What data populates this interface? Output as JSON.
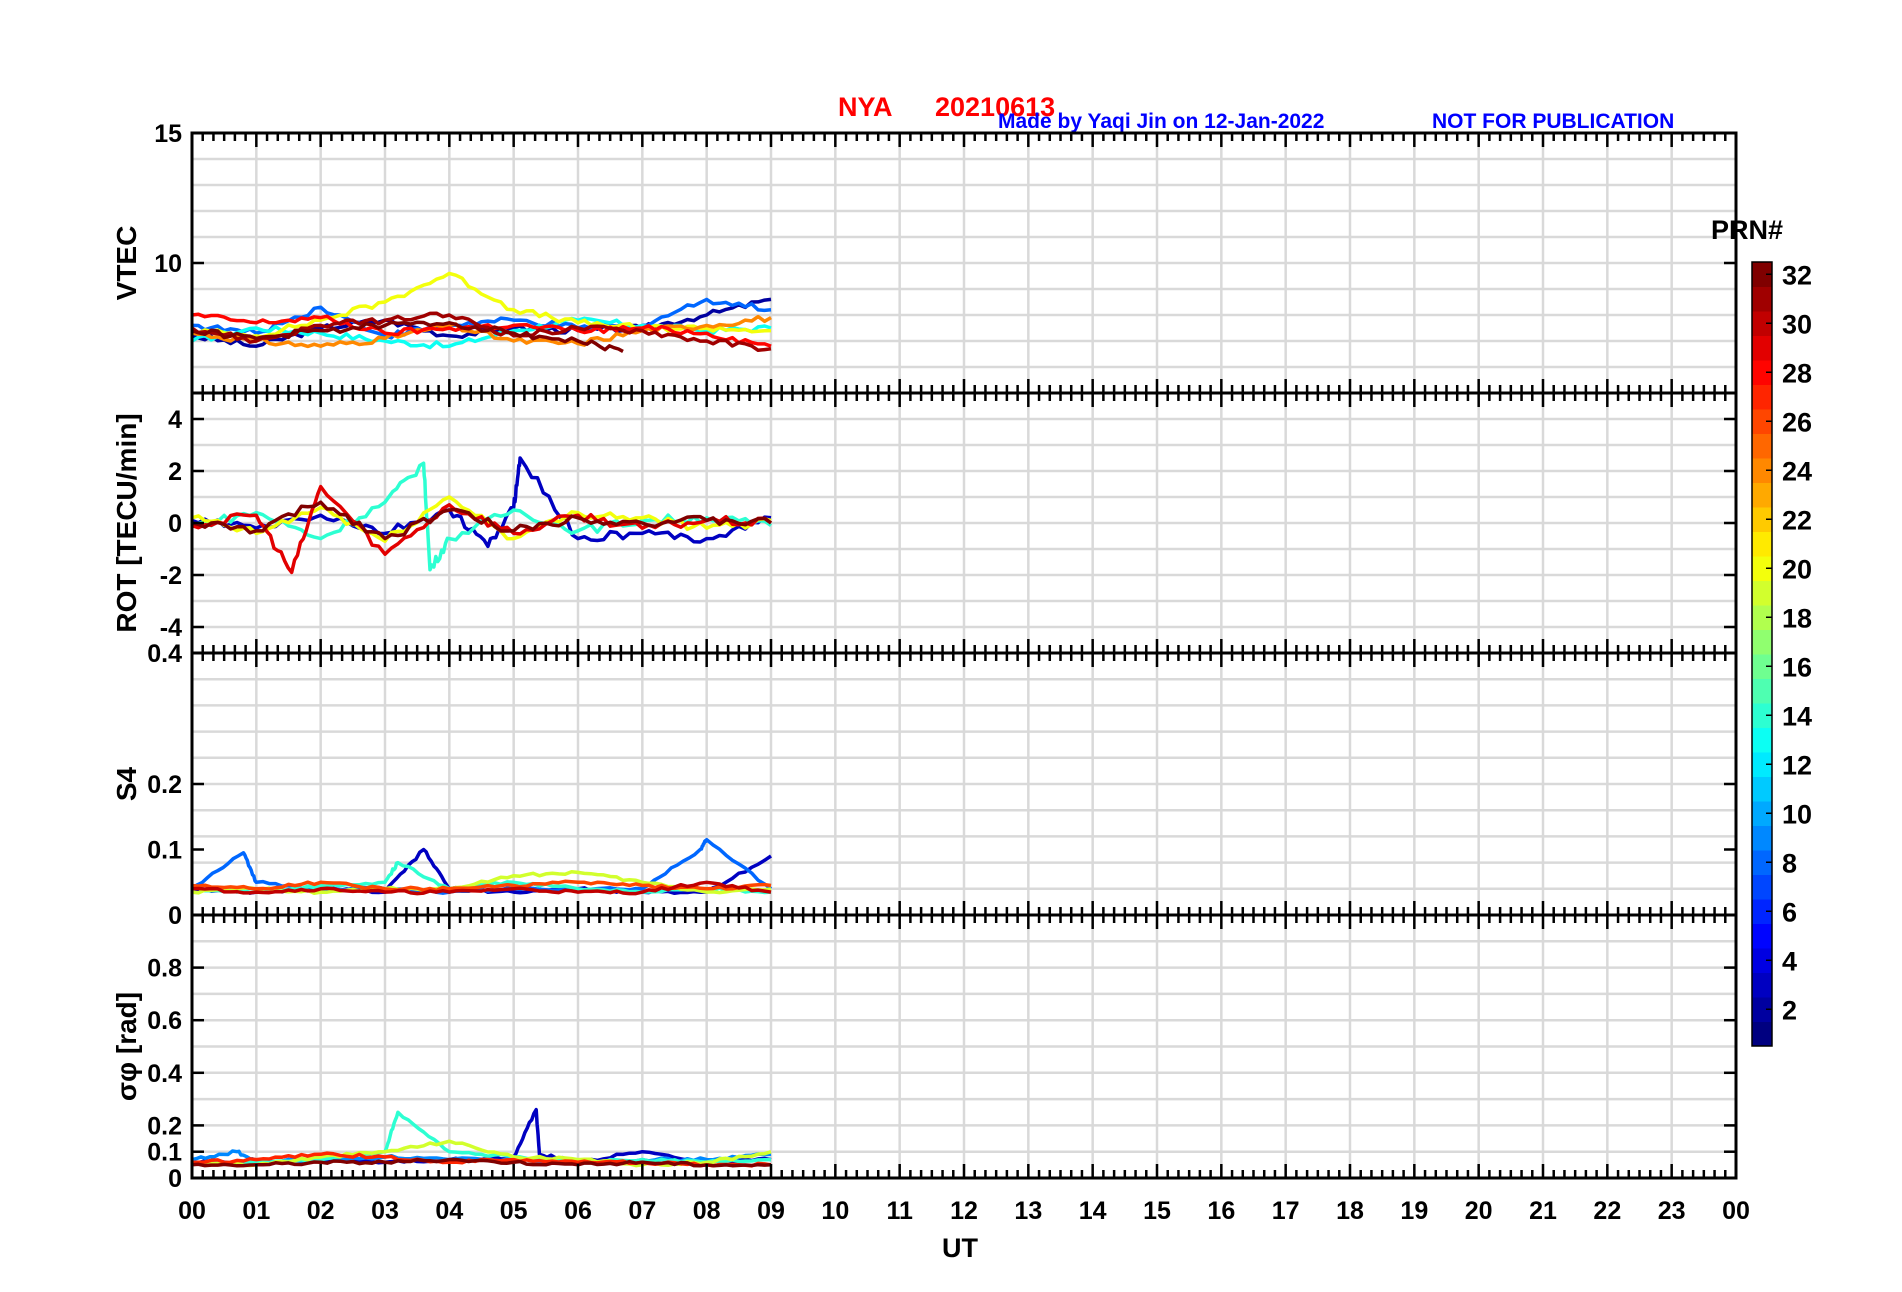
{
  "header": {
    "station": "NYA",
    "date": "20210613",
    "credit": "Made by Yaqi Jin on 12-Jan-2022",
    "notice": "NOT FOR PUBLICATION"
  },
  "colors": {
    "title_red": "#ff0000",
    "credit_blue": "#0000ff",
    "axis": "#000000",
    "grid": "#d9d9d9"
  },
  "colorbar": {
    "label": "PRN#",
    "ticks": [
      "2",
      "4",
      "6",
      "8",
      "10",
      "12",
      "14",
      "16",
      "18",
      "20",
      "22",
      "24",
      "26",
      "28",
      "30",
      "32"
    ],
    "range": [
      1,
      32
    ],
    "colormap": "jet"
  },
  "x_axis": {
    "label": "UT",
    "ticks": [
      "00",
      "01",
      "02",
      "03",
      "04",
      "05",
      "06",
      "07",
      "08",
      "09",
      "10",
      "11",
      "12",
      "13",
      "14",
      "15",
      "16",
      "17",
      "18",
      "19",
      "20",
      "21",
      "22",
      "23",
      "00"
    ],
    "range_hours": [
      0,
      24
    ]
  },
  "chart_data": [
    {
      "type": "line",
      "panel": "vtec",
      "ylabel": "VTEC",
      "ylim": [
        5,
        15
      ],
      "yticks": [
        "10",
        "15"
      ],
      "grid": true,
      "data_extent_hours": [
        0,
        9.05
      ],
      "series": [
        {
          "prn": 2,
          "x": [
            0,
            1,
            2,
            3,
            4,
            5,
            6,
            7,
            8,
            9
          ],
          "y": [
            7.2,
            6.8,
            7.5,
            7.8,
            7.2,
            7.5,
            7.4,
            7.5,
            8.0,
            8.6
          ]
        },
        {
          "prn": 8,
          "x": [
            0,
            1,
            2,
            3,
            4,
            5,
            6,
            7,
            8,
            9
          ],
          "y": [
            7.6,
            7.3,
            8.3,
            7.2,
            7.6,
            7.8,
            7.5,
            7.6,
            8.6,
            8.2
          ]
        },
        {
          "prn": 13,
          "x": [
            0,
            1,
            2,
            3,
            4,
            5,
            6,
            7,
            8,
            9
          ],
          "y": [
            7.0,
            7.5,
            7.3,
            7.0,
            6.8,
            7.4,
            7.8,
            7.6,
            7.4,
            7.5
          ]
        },
        {
          "prn": 20,
          "x": [
            0,
            1,
            2,
            3,
            4,
            5,
            6,
            7,
            8,
            9
          ],
          "y": [
            7.4,
            7.2,
            7.8,
            8.5,
            9.6,
            8.2,
            7.7,
            7.5,
            7.5,
            7.4
          ]
        },
        {
          "prn": 24,
          "x": [
            0,
            1,
            2,
            3,
            4,
            5,
            6,
            7,
            8,
            9
          ],
          "y": [
            7.3,
            7.0,
            6.8,
            7.1,
            7.6,
            7.0,
            6.9,
            7.4,
            7.6,
            7.9
          ]
        },
        {
          "prn": 28,
          "x": [
            0,
            1,
            2,
            3,
            4,
            5,
            6,
            7,
            8,
            9
          ],
          "y": [
            8.0,
            7.7,
            7.9,
            7.3,
            7.5,
            7.6,
            7.4,
            7.5,
            7.3,
            6.8
          ]
        },
        {
          "prn": 31,
          "x": [
            0,
            1,
            2,
            3,
            4,
            5,
            6,
            7,
            8,
            9
          ],
          "y": [
            7.5,
            7.0,
            7.6,
            7.8,
            8.0,
            7.2,
            7.5,
            7.4,
            7.0,
            6.7
          ]
        },
        {
          "prn": 32,
          "x": [
            0,
            1,
            2,
            3,
            4,
            5,
            6,
            6.7
          ],
          "y": [
            7.4,
            7.1,
            7.4,
            7.6,
            7.7,
            7.3,
            7.0,
            6.6
          ]
        }
      ]
    },
    {
      "type": "line",
      "panel": "rot",
      "ylabel": "ROT [TECU/min]",
      "ylim": [
        -5,
        5
      ],
      "yticks": [
        "-4",
        "-2",
        "0",
        "2",
        "4"
      ],
      "grid": true,
      "data_extent_hours": [
        0,
        9.05
      ],
      "series": [
        {
          "prn": 3,
          "x": [
            0,
            1,
            2,
            3,
            4,
            4.6,
            5,
            5.1,
            6,
            7,
            8,
            9
          ],
          "y": [
            0.1,
            -0.2,
            0.3,
            -0.4,
            0.5,
            -0.9,
            0.6,
            2.5,
            -0.6,
            -0.4,
            -0.6,
            0.2
          ]
        },
        {
          "prn": 14,
          "x": [
            0,
            1,
            2,
            3,
            3.6,
            3.7,
            4,
            5,
            6,
            7,
            8,
            9
          ],
          "y": [
            -0.1,
            0.4,
            -0.6,
            0.8,
            2.3,
            -1.8,
            -0.6,
            0.5,
            -0.3,
            0.1,
            0.2,
            -0.1
          ]
        },
        {
          "prn": 20,
          "x": [
            0,
            1,
            2,
            3,
            4,
            5,
            6,
            7,
            8,
            9
          ],
          "y": [
            0.2,
            -0.4,
            0.6,
            -0.7,
            1.0,
            -0.6,
            0.4,
            0.2,
            -0.2,
            0.1
          ]
        },
        {
          "prn": 29,
          "x": [
            0,
            1,
            1.55,
            2,
            3,
            4,
            5,
            6,
            7,
            8,
            9
          ],
          "y": [
            -0.1,
            0.3,
            -1.9,
            1.4,
            -1.2,
            0.7,
            -0.4,
            0.3,
            -0.2,
            0.1,
            0.0
          ]
        },
        {
          "prn": 32,
          "x": [
            0,
            1,
            2,
            3,
            4,
            5,
            6,
            7,
            8,
            9
          ],
          "y": [
            0.0,
            -0.3,
            0.8,
            -0.6,
            0.5,
            -0.3,
            0.2,
            0.0,
            0.1,
            0.0
          ]
        }
      ]
    },
    {
      "type": "line",
      "panel": "s4",
      "ylabel": "S4",
      "ylim": [
        0,
        0.4
      ],
      "yticks": [
        "0",
        "0.1",
        "0.2",
        "0.4"
      ],
      "grid": true,
      "data_extent_hours": [
        0,
        9.05
      ],
      "series": [
        {
          "prn": 3,
          "x": [
            0,
            1,
            2,
            3,
            3.6,
            4,
            5,
            6,
            7,
            8.0,
            9.0
          ],
          "y": [
            0.04,
            0.035,
            0.04,
            0.035,
            0.1,
            0.04,
            0.035,
            0.04,
            0.035,
            0.035,
            0.09
          ]
        },
        {
          "prn": 8,
          "x": [
            0,
            0.8,
            1,
            2,
            3,
            4,
            5,
            6,
            7,
            7.9,
            8.0,
            9
          ],
          "y": [
            0.04,
            0.095,
            0.05,
            0.04,
            0.04,
            0.035,
            0.04,
            0.04,
            0.04,
            0.1,
            0.115,
            0.04
          ]
        },
        {
          "prn": 14,
          "x": [
            0,
            1,
            2,
            3,
            3.2,
            4,
            5,
            6,
            7,
            8,
            9
          ],
          "y": [
            0.04,
            0.035,
            0.045,
            0.05,
            0.08,
            0.04,
            0.05,
            0.04,
            0.035,
            0.04,
            0.035
          ]
        },
        {
          "prn": 19,
          "x": [
            0,
            1,
            2,
            3,
            4,
            5,
            6,
            7,
            8,
            9
          ],
          "y": [
            0.035,
            0.04,
            0.035,
            0.04,
            0.04,
            0.06,
            0.065,
            0.05,
            0.035,
            0.04
          ]
        },
        {
          "prn": 26,
          "x": [
            0,
            1,
            2,
            3,
            4,
            5,
            6,
            7,
            8,
            9
          ],
          "y": [
            0.045,
            0.04,
            0.05,
            0.04,
            0.04,
            0.045,
            0.05,
            0.045,
            0.04,
            0.045
          ]
        },
        {
          "prn": 30,
          "x": [
            0,
            1,
            2,
            3,
            4,
            5,
            6,
            7,
            8,
            9
          ],
          "y": [
            0.04,
            0.035,
            0.04,
            0.035,
            0.035,
            0.04,
            0.035,
            0.035,
            0.05,
            0.035
          ]
        }
      ]
    },
    {
      "type": "line",
      "panel": "sigma_phi",
      "ylabel": "σφ [rad]",
      "ylim": [
        0,
        1
      ],
      "yticks": [
        "0",
        "0.1",
        "0.2",
        "0.4",
        "0.6",
        "0.8"
      ],
      "grid": true,
      "data_extent_hours": [
        0,
        9.05
      ],
      "series": [
        {
          "prn": 3,
          "x": [
            0,
            1,
            2,
            3,
            4,
            5,
            5.35,
            5.4,
            6,
            7,
            8,
            9
          ],
          "y": [
            0.06,
            0.06,
            0.07,
            0.06,
            0.07,
            0.08,
            0.26,
            0.09,
            0.06,
            0.1,
            0.06,
            0.07
          ]
        },
        {
          "prn": 9,
          "x": [
            0,
            0.7,
            1,
            2,
            3,
            4,
            5,
            6,
            7,
            8,
            9
          ],
          "y": [
            0.07,
            0.1,
            0.06,
            0.07,
            0.08,
            0.07,
            0.07,
            0.06,
            0.07,
            0.07,
            0.09
          ]
        },
        {
          "prn": 14,
          "x": [
            0,
            1,
            2,
            3,
            3.2,
            4,
            5,
            6,
            7,
            8,
            9
          ],
          "y": [
            0.05,
            0.06,
            0.07,
            0.1,
            0.25,
            0.1,
            0.08,
            0.06,
            0.07,
            0.06,
            0.07
          ]
        },
        {
          "prn": 19,
          "x": [
            0,
            1,
            2,
            3,
            4,
            5,
            6,
            7,
            8,
            9
          ],
          "y": [
            0.06,
            0.05,
            0.08,
            0.1,
            0.14,
            0.08,
            0.07,
            0.05,
            0.06,
            0.1
          ]
        },
        {
          "prn": 27,
          "x": [
            0,
            1,
            2,
            3,
            4,
            5,
            6,
            7,
            8,
            9
          ],
          "y": [
            0.06,
            0.07,
            0.09,
            0.08,
            0.06,
            0.07,
            0.06,
            0.06,
            0.05,
            0.05
          ]
        },
        {
          "prn": 32,
          "x": [
            0,
            1,
            2,
            3,
            4,
            5,
            6,
            7,
            8,
            9
          ],
          "y": [
            0.05,
            0.05,
            0.06,
            0.06,
            0.07,
            0.06,
            0.05,
            0.06,
            0.05,
            0.05
          ]
        }
      ]
    }
  ]
}
